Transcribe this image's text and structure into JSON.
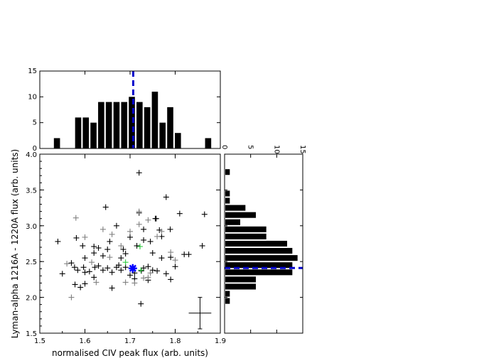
{
  "chart_data": [
    {
      "type": "bar",
      "panel": "top-histogram",
      "bin_width": 0.0167,
      "bin_centers": [
        1.538,
        1.585,
        1.602,
        1.619,
        1.636,
        1.653,
        1.67,
        1.687,
        1.704,
        1.721,
        1.738,
        1.755,
        1.772,
        1.789,
        1.806,
        1.823,
        1.873
      ],
      "values": [
        2,
        6,
        6,
        5,
        9,
        9,
        9,
        9,
        10,
        9,
        8,
        11,
        5,
        8,
        3,
        0,
        2
      ],
      "xlim": [
        1.5,
        1.9
      ],
      "ylim": [
        0,
        15
      ],
      "yticks": [
        "0",
        "5",
        "10",
        "15"
      ],
      "marker_line": {
        "value": 1.707,
        "style": "dashed",
        "color": "#0000cc"
      }
    },
    {
      "type": "scatter",
      "panel": "main-scatter",
      "xlabel": "normalised CIV peak flux (arb. units)",
      "ylabel": "Lyman-alpha 1216A - 1220A flux (arb. units)",
      "xlim": [
        1.5,
        1.9
      ],
      "ylim": [
        1.5,
        4.0
      ],
      "xticks": [
        "1.5",
        "1.6",
        "1.7",
        "1.8",
        "1.9"
      ],
      "yticks": [
        "1.5",
        "2.0",
        "2.5",
        "3.0",
        "3.5",
        "4.0"
      ],
      "series": [
        {
          "marker": "plus",
          "color": "#000000",
          "x": [
            1.72,
            1.646,
            1.581,
            1.597,
            1.55,
            1.57,
            1.577,
            1.584,
            1.6,
            1.61,
            1.622,
            1.63,
            1.64,
            1.65,
            1.66,
            1.67,
            1.675,
            1.68,
            1.69,
            1.7,
            1.71,
            1.725,
            1.73,
            1.74,
            1.75,
            1.76,
            1.78,
            1.8,
            1.79,
            1.865,
            1.578,
            1.59,
            1.6,
            1.62,
            1.64,
            1.65,
            1.68,
            1.69,
            1.7,
            1.73,
            1.75,
            1.77,
            1.79,
            1.83,
            1.67,
            1.72,
            1.756,
            1.78,
            1.765,
            1.789,
            1.71,
            1.724,
            1.86,
            1.54,
            1.595,
            1.63,
            1.655,
            1.685,
            1.715,
            1.745,
            1.77,
            1.62,
            1.66,
            1.6,
            1.74,
            1.73,
            1.758,
            1.81,
            1.82,
            1.62
          ],
          "y": [
            3.74,
            3.26,
            2.83,
            2.42,
            2.33,
            2.48,
            2.42,
            2.38,
            2.35,
            2.36,
            2.42,
            2.44,
            2.38,
            2.41,
            2.35,
            2.42,
            2.45,
            2.38,
            2.42,
            2.31,
            2.34,
            2.37,
            2.41,
            2.43,
            2.38,
            2.37,
            2.33,
            2.43,
            2.25,
            3.16,
            2.18,
            2.14,
            2.55,
            2.62,
            2.58,
            2.67,
            2.55,
            2.61,
            2.84,
            2.8,
            2.62,
            2.55,
            2.56,
            2.6,
            3.0,
            3.18,
            3.1,
            3.4,
            2.94,
            2.95,
            2.26,
            1.91,
            2.72,
            2.78,
            2.72,
            2.69,
            2.78,
            2.67,
            2.72,
            2.78,
            2.85,
            2.28,
            2.13,
            2.19,
            2.24,
            2.95,
            3.1,
            3.17,
            2.6,
            2.71
          ]
        },
        {
          "marker": "plus",
          "color": "#808080",
          "x": [
            1.58,
            1.6,
            1.64,
            1.66,
            1.7,
            1.72,
            1.74,
            1.76,
            1.77,
            1.79,
            1.68,
            1.615,
            1.655,
            1.71,
            1.73,
            1.625,
            1.57,
            1.69,
            1.74,
            1.745,
            1.8,
            1.56,
            1.72
          ],
          "y": [
            3.11,
            2.84,
            2.95,
            2.88,
            2.92,
            3.02,
            3.08,
            2.85,
            2.92,
            2.63,
            2.72,
            2.49,
            2.56,
            2.2,
            2.27,
            2.21,
            2.0,
            2.21,
            2.28,
            2.34,
            2.52,
            2.47,
            3.2
          ]
        },
        {
          "marker": "plus",
          "color": "#2ecc40",
          "x": [
            1.69,
            1.724,
            1.722
          ],
          "y": [
            2.49,
            2.38,
            2.71
          ]
        },
        {
          "marker": "asterisk",
          "color": "#0000ff",
          "x": [
            1.706
          ],
          "y": [
            2.405
          ]
        }
      ],
      "error_bar": {
        "x": 1.855,
        "y": 1.78,
        "x_err": 0.025,
        "y_err": 0.22
      }
    },
    {
      "type": "bar",
      "panel": "right-histogram",
      "orientation": "horizontal",
      "xlim": [
        0,
        15
      ],
      "xticks": [
        "0",
        "5",
        "10",
        "15"
      ],
      "bins": [
        {
          "y": 3.75,
          "value": 1
        },
        {
          "y": 3.45,
          "value": 1
        },
        {
          "y": 3.35,
          "value": 1
        },
        {
          "y": 3.25,
          "value": 4
        },
        {
          "y": 3.15,
          "value": 6
        },
        {
          "y": 3.05,
          "value": 3
        },
        {
          "y": 2.95,
          "value": 8
        },
        {
          "y": 2.85,
          "value": 8
        },
        {
          "y": 2.75,
          "value": 12
        },
        {
          "y": 2.65,
          "value": 13
        },
        {
          "y": 2.55,
          "value": 14
        },
        {
          "y": 2.45,
          "value": 13
        },
        {
          "y": 2.35,
          "value": 13
        },
        {
          "y": 2.25,
          "value": 6
        },
        {
          "y": 2.15,
          "value": 6
        },
        {
          "y": 2.05,
          "value": 1
        },
        {
          "y": 1.95,
          "value": 1
        }
      ],
      "marker_line": {
        "value": 2.41,
        "style": "dashed",
        "color": "#0000cc"
      }
    }
  ]
}
